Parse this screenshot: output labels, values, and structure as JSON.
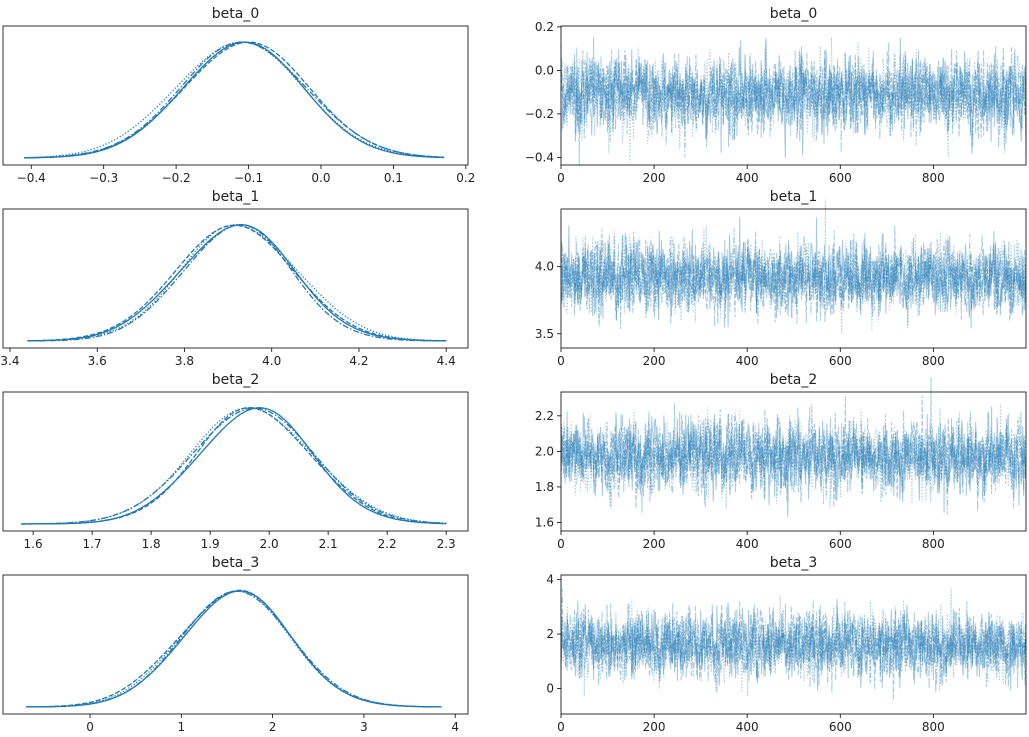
{
  "chart_data": {
    "type": "line",
    "kind": "trace plot",
    "color": "#1f77b4",
    "chain_line_styles": [
      "solid",
      "dashed",
      "dotted",
      "dashdot"
    ],
    "draws_per_chain": 1000,
    "grid": false,
    "variables": [
      {
        "name": "beta_0",
        "mean": -0.11,
        "sd": 0.085,
        "density_range": [
          -0.41,
          0.17
        ],
        "density_xlim": [
          -0.439,
          0.203
        ],
        "density_xticks": [
          -0.4,
          -0.3,
          -0.2,
          -0.1,
          0.0,
          0.1,
          0.2
        ],
        "density_xtick_labels": [
          "−0.4",
          "−0.3",
          "−0.2",
          "−0.1",
          "0.0",
          "0.1",
          "0.2"
        ],
        "trace_ylim": [
          -0.435,
          0.204
        ],
        "trace_yticks": [
          -0.4,
          -0.2,
          0.0,
          0.2
        ],
        "trace_ytick_labels": [
          "−0.4",
          "−0.2",
          "0.0",
          "0.2"
        ]
      },
      {
        "name": "beta_1",
        "mean": 3.92,
        "sd": 0.13,
        "density_range": [
          3.44,
          4.4
        ],
        "density_xlim": [
          3.384,
          4.45
        ],
        "density_xticks": [
          3.4,
          3.6,
          3.8,
          4.0,
          4.2,
          4.4
        ],
        "density_xtick_labels": [
          "3.4",
          "3.6",
          "3.8",
          "4.0",
          "4.2",
          "4.4"
        ],
        "trace_ylim": [
          3.394,
          4.43
        ],
        "trace_yticks": [
          3.5,
          4.0
        ],
        "trace_ytick_labels": [
          "3.5",
          "4.0"
        ]
      },
      {
        "name": "beta_2",
        "mean": 1.97,
        "sd": 0.1,
        "density_range": [
          1.58,
          2.3
        ],
        "density_xlim": [
          1.549,
          2.337
        ],
        "density_xticks": [
          1.6,
          1.7,
          1.8,
          1.9,
          2.0,
          2.1,
          2.2,
          2.3
        ],
        "density_xtick_labels": [
          "1.6",
          "1.7",
          "1.8",
          "1.9",
          "2.0",
          "2.1",
          "2.2",
          "2.3"
        ],
        "trace_ylim": [
          1.552,
          2.334
        ],
        "trace_yticks": [
          1.6,
          1.8,
          2.0,
          2.2
        ],
        "trace_ytick_labels": [
          "1.6",
          "1.8",
          "2.0",
          "2.2"
        ]
      },
      {
        "name": "beta_3",
        "mean": 1.6,
        "sd": 0.6,
        "density_range": [
          -0.7,
          3.85
        ],
        "density_xlim": [
          -0.953,
          4.14
        ],
        "density_xticks": [
          0,
          1,
          2,
          3,
          4
        ],
        "density_xtick_labels": [
          "0",
          "1",
          "2",
          "3",
          "4"
        ],
        "trace_ylim": [
          -0.94,
          4.17
        ],
        "trace_yticks": [
          0,
          2,
          4
        ],
        "trace_ytick_labels": [
          "0",
          "2",
          "4"
        ]
      }
    ],
    "trace_xlim": [
      0,
      999
    ],
    "trace_xticks": [
      0,
      200,
      400,
      600,
      800
    ],
    "trace_xtick_labels": [
      "0",
      "200",
      "400",
      "600",
      "800"
    ]
  }
}
